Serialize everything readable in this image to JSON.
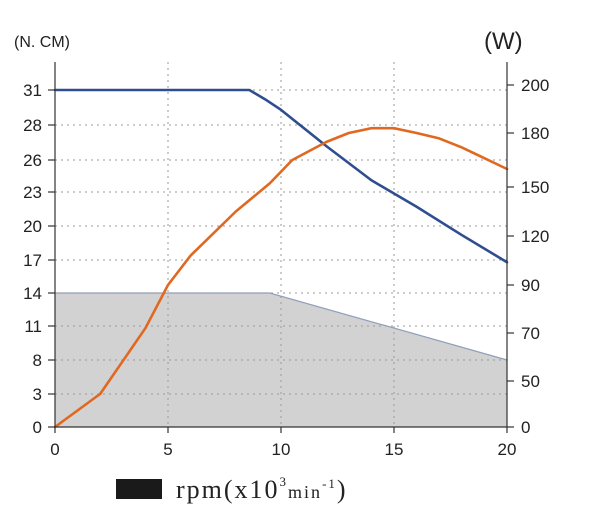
{
  "chart_data": {
    "type": "line",
    "x_label": "rpm",
    "left_unit": "(N. CM)",
    "right_unit": "(W)",
    "xlim": [
      0,
      20
    ],
    "x_ticks": [
      "0",
      "5",
      "10",
      "15",
      "20"
    ],
    "left_ticks": [
      "0",
      "3",
      "8",
      "11",
      "14",
      "17",
      "20",
      "23",
      "26",
      "28",
      "31"
    ],
    "right_ticks": [
      "0",
      "50",
      "70",
      "90",
      "120",
      "150",
      "180",
      "200"
    ],
    "grid": "dotted",
    "legend_text": "rpm(x10",
    "legend_sup": "3",
    "legend_mid": "min",
    "legend_exp": "-1",
    "legend_end": ")",
    "series": [
      {
        "axis": "left",
        "color": "#2e4e8f",
        "points": [
          [
            0,
            31
          ],
          [
            8.6,
            31
          ],
          [
            9.3,
            30.2
          ],
          [
            10,
            29.3
          ],
          [
            12,
            26.8
          ],
          [
            14,
            24.1
          ],
          [
            16,
            21.7
          ],
          [
            18,
            19.2
          ],
          [
            20,
            16.8
          ]
        ]
      },
      {
        "axis": "right",
        "color": "#e06820",
        "points": [
          [
            0,
            0
          ],
          [
            2,
            36
          ],
          [
            4,
            72
          ],
          [
            5,
            90
          ],
          [
            6,
            108
          ],
          [
            8,
            135
          ],
          [
            9.5,
            152
          ],
          [
            10.5,
            165
          ],
          [
            12,
            175
          ],
          [
            13,
            180
          ],
          [
            14,
            182
          ],
          [
            15,
            182
          ],
          [
            16,
            180
          ],
          [
            17,
            177
          ],
          [
            18,
            172
          ],
          [
            19,
            166
          ],
          [
            20,
            160
          ]
        ]
      },
      {
        "axis": "left",
        "fill": "area",
        "color": "#d2d2d2",
        "edge_color": "#8fa0bd",
        "points": [
          [
            0,
            14
          ],
          [
            9.5,
            14
          ],
          [
            20,
            8
          ]
        ]
      }
    ]
  }
}
